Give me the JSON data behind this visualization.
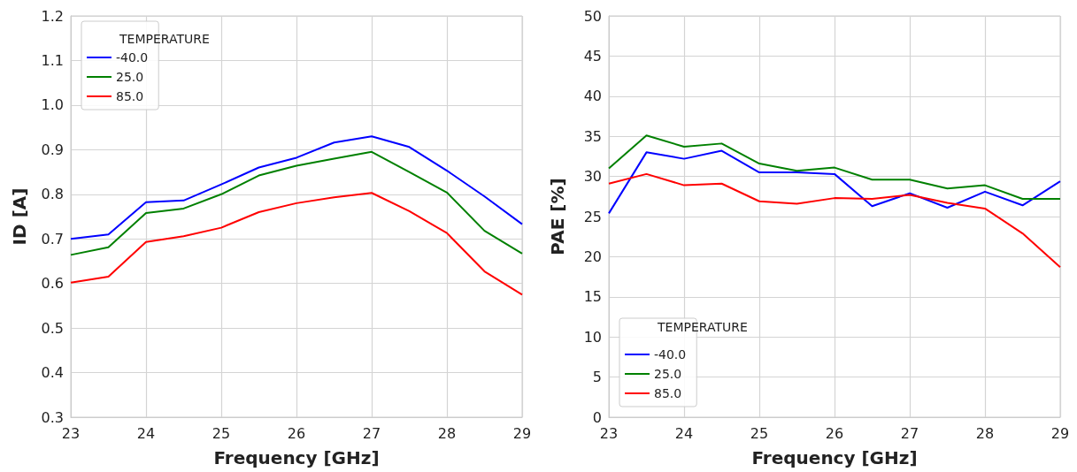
{
  "chart_data": [
    {
      "type": "line",
      "xlabel": "Frequency [GHz]",
      "ylabel": "ID [A]",
      "legend_title": "TEMPERATURE",
      "legend": "top left",
      "grid": true,
      "marker": "none",
      "line_style": "solid",
      "x": [
        23,
        23.5,
        24,
        24.5,
        25,
        25.5,
        26,
        26.5,
        27,
        27.5,
        28,
        28.5,
        29
      ],
      "xlim": [
        23,
        29
      ],
      "xticks": [
        23,
        24,
        25,
        26,
        27,
        28,
        29
      ],
      "ylim": [
        0.3,
        1.2
      ],
      "yticks": [
        0.3,
        0.4,
        0.5,
        0.6,
        0.7,
        0.8,
        0.9,
        {
          "value": 1,
          "label": "1.0"
        },
        1.1,
        1.2
      ],
      "series": [
        {
          "name": "-40.0",
          "color": "#0000ff",
          "values": [
            0.7,
            0.71,
            0.782,
            0.786,
            0.822,
            0.86,
            0.882,
            0.916,
            0.93,
            0.906,
            0.853,
            0.795,
            0.733
          ]
        },
        {
          "name": "25.0",
          "color": "#008000",
          "values": [
            0.664,
            0.681,
            0.758,
            0.768,
            0.8,
            0.842,
            0.864,
            0.88,
            0.895,
            0.85,
            0.804,
            0.718,
            0.667
          ]
        },
        {
          "name": "85.0",
          "color": "#ff0000",
          "values": [
            0.602,
            0.615,
            0.693,
            0.706,
            0.725,
            0.76,
            0.78,
            0.793,
            0.803,
            0.762,
            0.713,
            0.627,
            0.575
          ]
        }
      ]
    },
    {
      "type": "line",
      "xlabel": "Frequency [GHz]",
      "ylabel": "PAE [%]",
      "legend_title": "TEMPERATURE",
      "legend": "bottom left",
      "grid": true,
      "marker": "none",
      "line_style": "solid",
      "x": [
        23,
        23.5,
        24,
        24.5,
        25,
        25.5,
        26,
        26.5,
        27,
        27.5,
        28,
        28.5,
        29
      ],
      "xlim": [
        23,
        29
      ],
      "xticks": [
        23,
        24,
        25,
        26,
        27,
        28,
        29
      ],
      "ylim": [
        0,
        50
      ],
      "yticks": [
        0,
        5,
        10,
        15,
        20,
        25,
        30,
        35,
        40,
        45,
        50
      ],
      "series": [
        {
          "name": "-40.0",
          "color": "#0000ff",
          "values": [
            25.4,
            33.0,
            32.2,
            33.2,
            30.5,
            30.5,
            30.3,
            26.3,
            27.9,
            26.1,
            28.1,
            26.4,
            29.4
          ]
        },
        {
          "name": "25.0",
          "color": "#008000",
          "values": [
            31.0,
            35.1,
            33.7,
            34.1,
            31.6,
            30.7,
            31.1,
            29.6,
            29.6,
            28.5,
            28.9,
            27.2,
            27.2
          ]
        },
        {
          "name": "85.0",
          "color": "#ff0000",
          "values": [
            29.1,
            30.3,
            28.9,
            29.1,
            26.9,
            26.6,
            27.3,
            27.2,
            27.7,
            26.7,
            26.0,
            22.9,
            18.7
          ]
        }
      ]
    }
  ]
}
